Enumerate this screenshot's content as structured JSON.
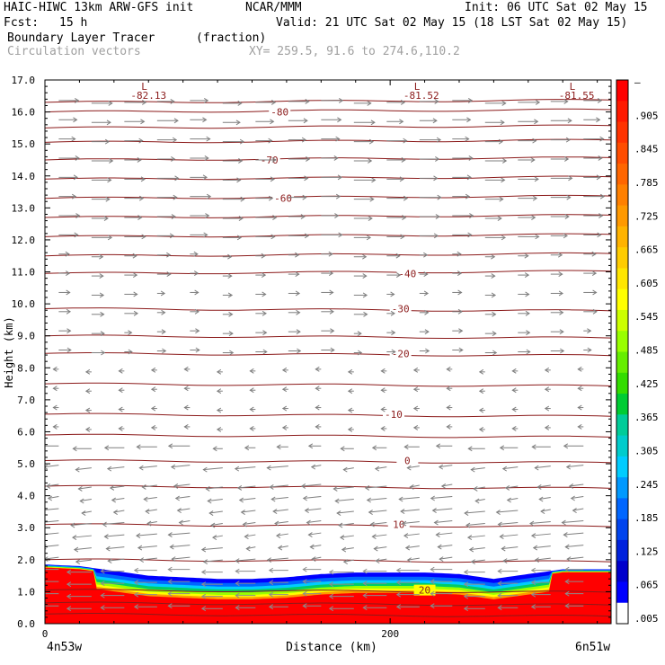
{
  "header": {
    "model": "HAIC-HIWC 13km ARW-GFS init",
    "org": "NCAR/MMM",
    "init": "Init: 06 UTC Sat 02 May 15",
    "fcst_label": "Fcst:",
    "fcst_value": "15 h",
    "valid": "Valid: 21 UTC Sat 02 May 15 (18 LST Sat 02 May 15)",
    "field": "Boundary Layer Tracer",
    "field_units": "(fraction)",
    "vectors": "Circulation vectors",
    "xy": "XY= 259.5, 91.6 to 274.6,110.2"
  },
  "colors": {
    "isotherm": "#8b1a1a",
    "vector": "#7f7f7f",
    "vector_low": "#8c8c8c"
  },
  "chart_data": {
    "type": "heatmap",
    "title": "Boundary Layer Tracer",
    "xlabel": "Distance (km)",
    "ylabel": "Height (km)",
    "xlim": [
      0,
      328
    ],
    "ylim": [
      0,
      17
    ],
    "x_ticks": [
      {
        "value": 0,
        "label": "0"
      },
      {
        "value": 200,
        "label": "200"
      }
    ],
    "x_end_labels": {
      "left": "4n53w",
      "right": "6n51w"
    },
    "y_ticks": [
      "0.0",
      "1.0",
      "2.0",
      "3.0",
      "4.0",
      "5.0",
      "6.0",
      "7.0",
      "8.0",
      "9.0",
      "10.0",
      "11.0",
      "12.0",
      "13.0",
      "14.0",
      "15.0",
      "16.0",
      "17.0"
    ],
    "colorbar": {
      "labels": [
        "–",
        ".905",
        ".845",
        ".785",
        ".725",
        ".665",
        ".605",
        ".545",
        ".485",
        ".425",
        ".365",
        ".305",
        ".245",
        ".185",
        ".125",
        ".065",
        ".005"
      ],
      "colors": [
        "#ff0000",
        "#ff1a00",
        "#ff3300",
        "#ff4d00",
        "#ff6600",
        "#ff8000",
        "#ff9900",
        "#ffb300",
        "#ffcc00",
        "#ffe600",
        "#ffff00",
        "#ccff00",
        "#99ff00",
        "#66ee00",
        "#33dd00",
        "#00cc33",
        "#00cc99",
        "#00cccc",
        "#00ccff",
        "#0099ff",
        "#0066ff",
        "#0044ee",
        "#0022dd",
        "#0000cc",
        "#0000ff",
        "#ffffff"
      ]
    },
    "bl_top": {
      "x": [
        0,
        20,
        40,
        60,
        80,
        100,
        120,
        140,
        160,
        180,
        200,
        220,
        240,
        260,
        280,
        300,
        328
      ],
      "z": [
        1.85,
        1.8,
        1.65,
        1.5,
        1.45,
        1.4,
        1.4,
        1.45,
        1.55,
        1.6,
        1.6,
        1.6,
        1.55,
        1.4,
        1.55,
        1.7,
        1.7
      ]
    },
    "temperature_contours": [
      {
        "label": "20",
        "z": 1.05,
        "lx": 220
      },
      {
        "label": "10",
        "z": 3.1,
        "lx": 205
      },
      {
        "label": "0",
        "z": 5.1,
        "lx": 210
      },
      {
        "label": "-10",
        "z": 6.55,
        "lx": 202
      },
      {
        "label": "-20",
        "z": 8.45,
        "lx": 206
      },
      {
        "label": "-30",
        "z": 9.85,
        "lx": 206
      },
      {
        "label": "-40",
        "z": 10.95,
        "lx": 210
      },
      {
        "label": "-60",
        "z": 13.3,
        "lx": 138
      },
      {
        "label": "-70",
        "z": 14.5,
        "lx": 130
      },
      {
        "label": "-80",
        "z": 16.0,
        "lx": 136
      }
    ],
    "unlabeled_contours_z": [
      0.3,
      0.65,
      2.0,
      4.3,
      5.9,
      7.5,
      9.0,
      11.5,
      12.1,
      12.7,
      13.9,
      15.05,
      15.5,
      16.3
    ],
    "lows": [
      {
        "label": "L",
        "value": "-82.13",
        "x": 60
      },
      {
        "label": "L",
        "value": "-81.52",
        "x": 218
      },
      {
        "label": "L",
        "value": "-81.55",
        "x": 308
      }
    ]
  }
}
